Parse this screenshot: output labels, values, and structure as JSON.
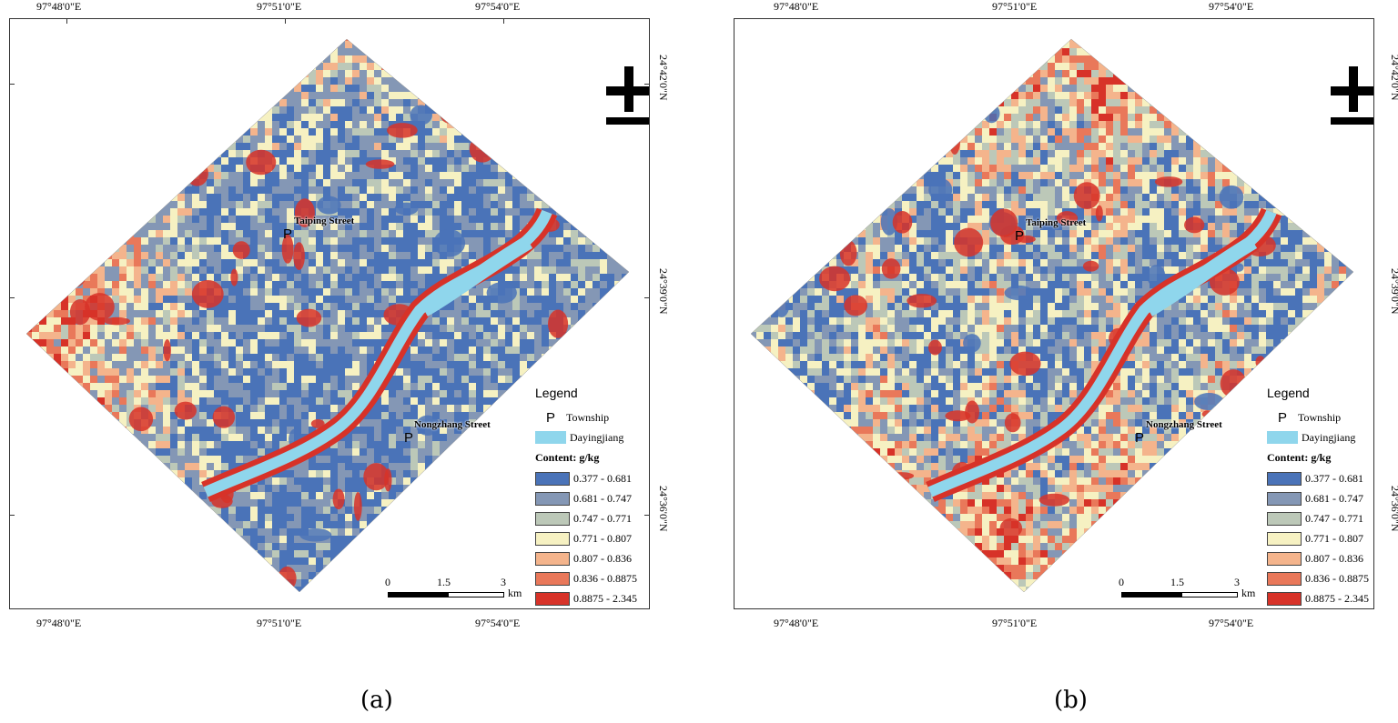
{
  "panels": [
    {
      "caption": "(a)",
      "variant": "a",
      "coords": {
        "top": [
          "97°48'0\"E",
          "97°51'0\"E",
          "97°54'0\"E"
        ],
        "bottom": [
          "97°48'0\"E",
          "97°51'0\"E",
          "97°54'0\"E"
        ],
        "right": [
          "24°42'0\"N",
          "24°39'0\"N",
          "24°36'0\"N"
        ]
      },
      "townships": [
        "Taiping Street",
        "Nongzhang Street"
      ],
      "township_symbol": "P"
    },
    {
      "caption": "(b)",
      "variant": "b",
      "coords": {
        "top": [
          "97°48'0\"E",
          "97°51'0\"E",
          "97°54'0\"E"
        ],
        "bottom": [
          "97°48'0\"E",
          "97°51'0\"E",
          "97°54'0\"E"
        ],
        "right": [
          "24°42'0\"N",
          "24°39'0\"N",
          "24°36'0\"N"
        ]
      },
      "townships": [
        "Taiping Street",
        "Nongzhang Street"
      ],
      "township_symbol": "P"
    }
  ],
  "legend": {
    "title": "Legend",
    "township": "Township",
    "river": "Dayingjiang",
    "content_title": "Content: g/kg",
    "classes": [
      {
        "range": "0.377 - 0.681",
        "color": "#4a73b8"
      },
      {
        "range": "0.681 - 0.747",
        "color": "#8497b5"
      },
      {
        "range": "0.747 - 0.771",
        "color": "#bcc8b8"
      },
      {
        "range": "0.771 - 0.807",
        "color": "#f6f1c2"
      },
      {
        "range": "0.807 - 0.836",
        "color": "#f4b48c"
      },
      {
        "range": "0.836 - 0.8875",
        "color": "#e9785a"
      },
      {
        "range": "0.8875 - 2.345",
        "color": "#d73228"
      }
    ]
  },
  "scale_bar": {
    "labels": [
      "0",
      "1.5",
      "3"
    ],
    "unit": "km"
  },
  "colors": {
    "river": "#8fd6ec"
  }
}
